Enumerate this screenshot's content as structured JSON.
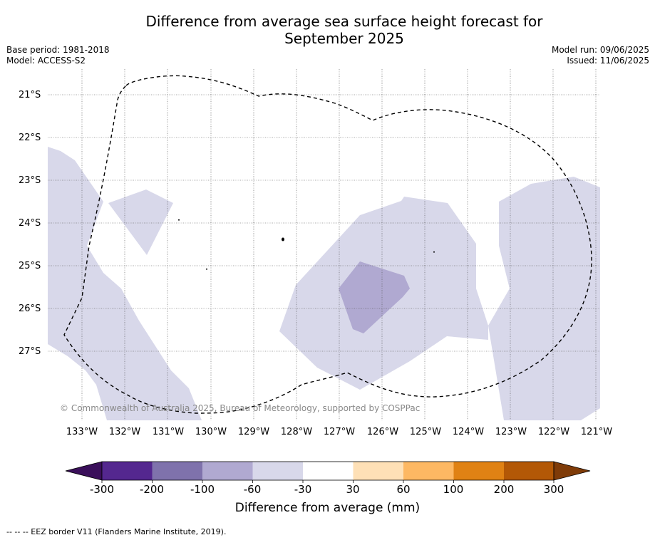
{
  "title_line1": "Difference from average sea surface height forecast for",
  "title_line2": "September 2025",
  "meta": {
    "base_period": "Base period: 1981-2018",
    "model": "Model: ACCESS-S2",
    "model_run": "Model run: 09/06/2025",
    "issued": "Issued: 11/06/2025"
  },
  "map": {
    "lat_labels": [
      "21°S",
      "22°S",
      "23°S",
      "24°S",
      "25°S",
      "26°S",
      "27°S"
    ],
    "lon_labels": [
      "133°W",
      "132°W",
      "131°W",
      "130°W",
      "129°W",
      "128°W",
      "127°W",
      "126°W",
      "125°W",
      "124°W",
      "123°W",
      "122°W",
      "121°W"
    ],
    "copyright": "© Commonwealth of Australia 2025, Bureau of Meteorology, supported by COSPPac",
    "eez_border_style": "dashed"
  },
  "colorbar": {
    "ticks": [
      "-300",
      "-200",
      "-100",
      "-60",
      "-30",
      "30",
      "60",
      "100",
      "200",
      "300"
    ],
    "colors": [
      "#3a0f5a",
      "#54278f",
      "#7f72ac",
      "#b0a9d1",
      "#d8d8ea",
      "#ffffff",
      "#fee0b6",
      "#fdb863",
      "#e08214",
      "#b35806",
      "#7f3b08"
    ],
    "label": "Difference from average (mm)"
  },
  "footnote": "--  --  -- EEZ border V11 (Flanders Marine Institute, 2019)."
}
